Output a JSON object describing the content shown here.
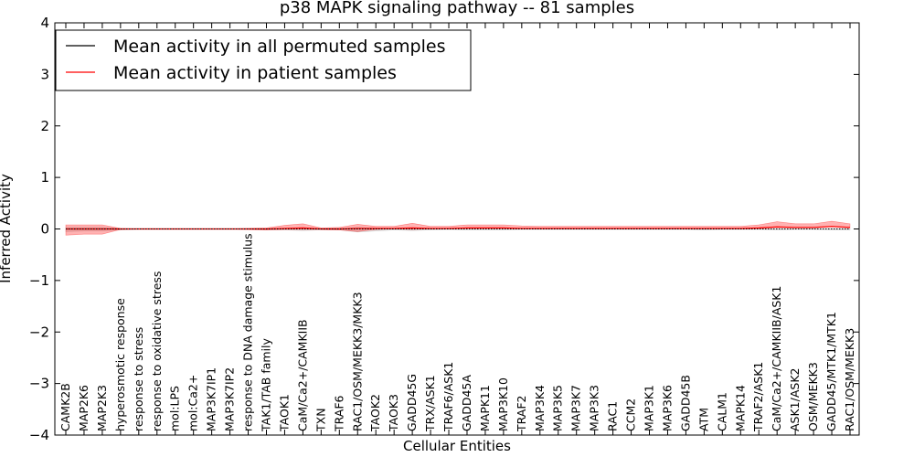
{
  "chart_data": {
    "type": "line",
    "title": "p38 MAPK signaling pathway -- 81 samples",
    "xlabel": "Cellular Entities",
    "ylabel": "Inferred Activity",
    "ylim": [
      -4,
      4
    ],
    "yticks": [
      "−4",
      "−3",
      "−2",
      "−1",
      "0",
      "1",
      "2",
      "3",
      "4"
    ],
    "grid": false,
    "legend_position": "top-left",
    "categories": [
      "CAMK2B",
      "MAP2K6",
      "MAP2K3",
      "hyperosmotic response",
      "response to stress",
      "response to oxidative stress",
      "mol:LPS",
      "mol:Ca2+",
      "MAP3K7IP1",
      "MAP3K7IP2",
      "response to DNA damage stimulus",
      "TAK1/TAB family",
      "TAOK1",
      "CaM/Ca2+/CAMKIIB",
      "TXN",
      "TRAF6",
      "RAC1/OSM/MEKK3/MKK3",
      "TAOK2",
      "TAOK3",
      "GADD45G",
      "TRX/ASK1",
      "TRAF6/ASK1",
      "GADD45A",
      "MAPK11",
      "MAP3K10",
      "TRAF2",
      "MAP3K4",
      "MAP3K5",
      "MAP3K7",
      "MAP3K3",
      "RAC1",
      "CCM2",
      "MAP3K1",
      "MAP3K6",
      "GADD45B",
      "ATM",
      "CALM1",
      "MAPK14",
      "TRAF2/ASK1",
      "CaM/Ca2+/CAMKIIB/ASK1",
      "ASK1/ASK2",
      "OSM/MEKK3",
      "GADD45/MTK1/MTK1",
      "RAC1/OSM/MEKK3"
    ],
    "series": [
      {
        "name": "Mean activity in all permuted samples",
        "color": "#000000",
        "values": [
          0.0,
          0.0,
          0.0,
          0.0,
          0.0,
          0.0,
          0.0,
          0.0,
          0.0,
          0.0,
          0.0,
          0.0,
          0.0,
          0.0,
          0.0,
          0.0,
          0.0,
          0.0,
          0.0,
          0.0,
          0.0,
          0.0,
          0.0,
          0.0,
          0.0,
          0.0,
          0.0,
          0.0,
          0.0,
          0.0,
          0.0,
          0.0,
          0.0,
          0.0,
          0.0,
          0.0,
          0.0,
          0.0,
          0.0,
          0.0,
          0.0,
          0.0,
          0.0,
          0.0
        ],
        "band_lower": [
          -0.05,
          -0.04,
          -0.04,
          -0.02,
          -0.01,
          -0.01,
          -0.01,
          -0.01,
          -0.01,
          -0.01,
          -0.01,
          -0.02,
          -0.02,
          -0.03,
          -0.02,
          -0.02,
          -0.06,
          -0.04,
          -0.02,
          -0.03,
          -0.02,
          -0.01,
          -0.02,
          -0.02,
          -0.02,
          -0.01,
          -0.01,
          -0.01,
          -0.01,
          -0.01,
          -0.01,
          -0.01,
          -0.01,
          -0.01,
          -0.01,
          -0.02,
          -0.01,
          -0.01,
          -0.01,
          -0.02,
          -0.01,
          -0.01,
          -0.02,
          -0.02
        ],
        "band_upper": [
          0.03,
          0.03,
          0.03,
          0.01,
          0.01,
          0.01,
          0.01,
          0.01,
          0.01,
          0.01,
          0.01,
          0.01,
          0.01,
          0.02,
          0.01,
          0.01,
          0.03,
          0.02,
          0.01,
          0.02,
          0.01,
          0.01,
          0.01,
          0.01,
          0.01,
          0.01,
          0.01,
          0.01,
          0.01,
          0.01,
          0.01,
          0.01,
          0.01,
          0.01,
          0.01,
          0.01,
          0.01,
          0.01,
          0.01,
          0.01,
          0.01,
          0.01,
          0.01,
          0.01
        ]
      },
      {
        "name": "Mean activity in patient samples",
        "color": "#ff0000",
        "values": [
          0.0,
          0.0,
          0.0,
          0.0,
          0.0,
          0.0,
          0.0,
          0.0,
          0.0,
          0.0,
          0.0,
          0.0,
          0.01,
          0.02,
          0.0,
          0.0,
          0.01,
          0.01,
          0.01,
          0.02,
          0.01,
          0.01,
          0.02,
          0.02,
          0.02,
          0.01,
          0.01,
          0.01,
          0.01,
          0.01,
          0.01,
          0.01,
          0.01,
          0.01,
          0.01,
          0.01,
          0.01,
          0.01,
          0.02,
          0.04,
          0.03,
          0.03,
          0.05,
          0.03
        ],
        "band_lower": [
          -0.12,
          -0.1,
          -0.1,
          -0.01,
          0.0,
          0.0,
          0.0,
          0.0,
          0.0,
          0.0,
          -0.01,
          -0.02,
          -0.02,
          -0.03,
          -0.01,
          -0.02,
          -0.06,
          -0.02,
          -0.01,
          -0.03,
          -0.01,
          -0.01,
          -0.01,
          -0.01,
          -0.01,
          -0.01,
          -0.01,
          -0.01,
          -0.01,
          -0.01,
          -0.01,
          -0.01,
          -0.01,
          -0.01,
          -0.01,
          -0.01,
          -0.01,
          -0.01,
          -0.01,
          -0.01,
          -0.01,
          -0.01,
          -0.01,
          -0.01
        ],
        "band_upper": [
          0.08,
          0.08,
          0.08,
          0.01,
          0.0,
          0.0,
          0.0,
          0.0,
          0.0,
          0.0,
          0.01,
          0.02,
          0.06,
          0.08,
          0.02,
          0.03,
          0.08,
          0.04,
          0.04,
          0.09,
          0.04,
          0.04,
          0.06,
          0.06,
          0.06,
          0.05,
          0.04,
          0.04,
          0.04,
          0.04,
          0.04,
          0.04,
          0.04,
          0.04,
          0.04,
          0.04,
          0.04,
          0.04,
          0.06,
          0.1,
          0.07,
          0.07,
          0.1,
          0.07
        ]
      }
    ]
  }
}
